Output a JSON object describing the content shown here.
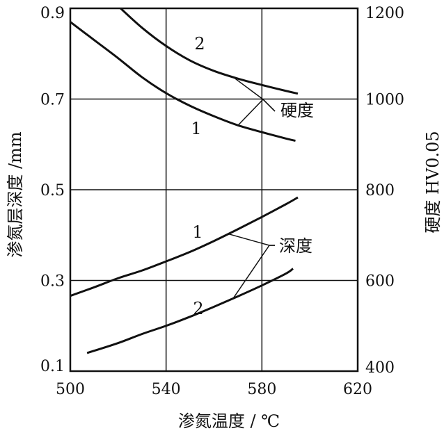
{
  "chart_data": {
    "type": "line",
    "xlabel": "渗氮温度 / ℃",
    "ylabel_left": "渗氮层深度 /mm",
    "ylabel_right": "硬度    HV0.05",
    "xlim": [
      500,
      620
    ],
    "ylim_left": [
      0.1,
      0.9
    ],
    "ylim_right": [
      400,
      1200
    ],
    "x_ticks": [
      "500",
      "540",
      "580",
      "620"
    ],
    "y_ticks_left": [
      "0.1",
      "0.3",
      "0.5",
      "0.7",
      "0.9"
    ],
    "y_ticks_right": [
      "400",
      "600",
      "800",
      "1000",
      "1200"
    ],
    "grid": true,
    "series": [
      {
        "name": "1",
        "group": "硬度",
        "axis": "right",
        "x": [
          500,
          510,
          520,
          530,
          540,
          550,
          560,
          570,
          580,
          590,
          594
        ],
        "y": [
          1170,
          1130,
          1090,
          1048,
          1013,
          985,
          962,
          942,
          927,
          913,
          908
        ]
      },
      {
        "name": "2",
        "group": "硬度",
        "axis": "right",
        "x": [
          521,
          530,
          540,
          550,
          560,
          570,
          580,
          590,
          595
        ],
        "y": [
          1200,
          1157,
          1117,
          1085,
          1062,
          1045,
          1031,
          1018,
          1012
        ]
      },
      {
        "name": "1",
        "group": "深度",
        "axis": "left",
        "x": [
          500,
          510,
          520,
          530,
          540,
          550,
          560,
          570,
          580,
          590,
          595
        ],
        "y": [
          0.266,
          0.285,
          0.305,
          0.322,
          0.342,
          0.363,
          0.387,
          0.413,
          0.44,
          0.468,
          0.483
        ]
      },
      {
        "name": "2",
        "group": "深度",
        "axis": "left",
        "x": [
          507,
          520,
          530,
          540,
          550,
          560,
          570,
          580,
          590,
          593
        ],
        "y": [
          0.14,
          0.162,
          0.182,
          0.2,
          0.22,
          0.242,
          0.265,
          0.289,
          0.315,
          0.326
        ]
      }
    ],
    "annotations": [
      "硬度",
      "深度"
    ]
  }
}
